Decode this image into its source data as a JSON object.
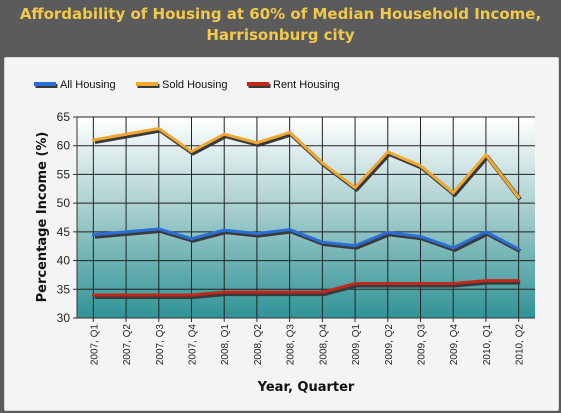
{
  "chart_data": {
    "type": "line",
    "title": "Affordability of Housing at 60% of Median Household Income, Harrisonburg city",
    "title_lines": [
      "Affordability of Housing at 60% of Median Household Income,",
      "Harrisonburg city"
    ],
    "xlabel": "Year, Quarter",
    "ylabel": "Percentage Income (%)",
    "ylim": [
      30,
      65
    ],
    "yticks": [
      30,
      35,
      40,
      45,
      50,
      55,
      60,
      65
    ],
    "grid": true,
    "legend_position": "top-left",
    "categories": [
      "2007, Q1",
      "2007, Q2",
      "2007, Q3",
      "2007, Q4",
      "2008, Q1",
      "2008, Q2",
      "2008, Q3",
      "2008, Q4",
      "2009, Q1",
      "2009, Q2",
      "2009, Q3",
      "2009, Q4",
      "2010, Q1",
      "2010, Q2"
    ],
    "series": [
      {
        "name": "All Housing",
        "color": "#2a6fd6",
        "values": [
          44.5,
          45,
          45.5,
          43.8,
          45.3,
          44.7,
          45.4,
          43.2,
          42.6,
          44.9,
          44.2,
          42.2,
          45,
          42
        ]
      },
      {
        "name": "Sold Housing",
        "color": "#f0a830",
        "values": [
          61,
          62,
          63,
          59,
          62,
          60.5,
          62.3,
          57,
          52.7,
          58.9,
          56.5,
          51.8,
          58.4,
          51
        ]
      },
      {
        "name": "Rent Housing",
        "color": "#c0281c",
        "values": [
          34,
          34,
          34,
          34,
          34.5,
          34.5,
          34.5,
          34.5,
          36,
          36,
          36,
          36,
          36.5,
          36.5
        ]
      }
    ]
  }
}
